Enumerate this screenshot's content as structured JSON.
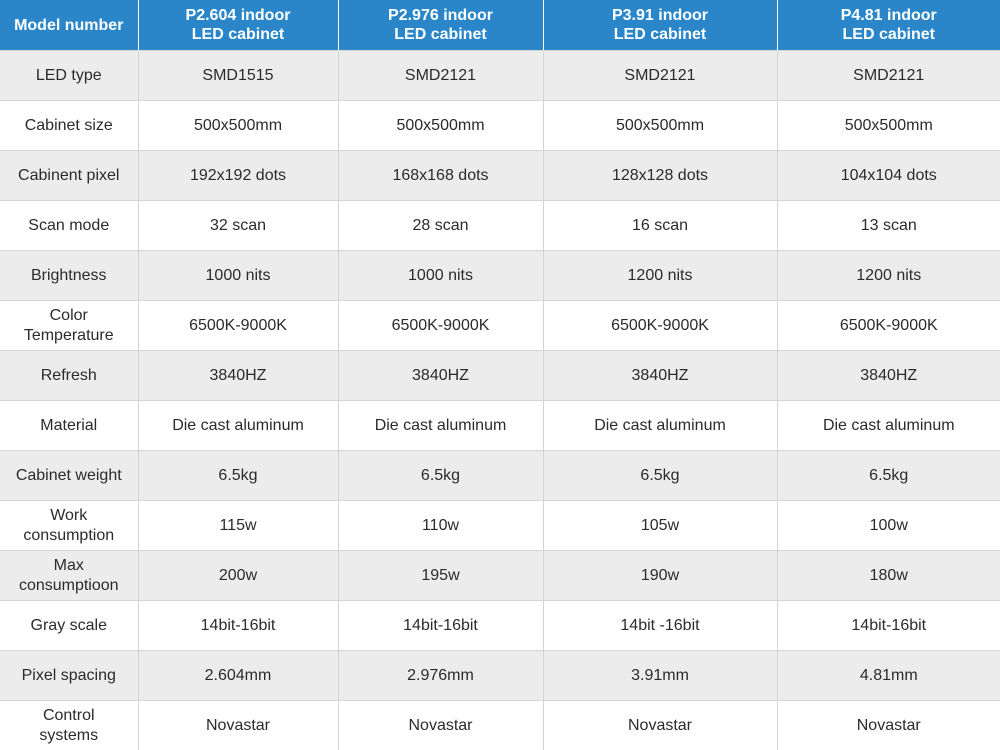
{
  "table": {
    "headers": [
      "Model number",
      "P2.604 indoor\nLED cabinet",
      "P2.976 indoor\nLED cabinet",
      "P3.91 indoor\nLED cabinet",
      "P4.81 indoor\nLED cabinet"
    ],
    "rows": [
      {
        "label": "LED type",
        "values": [
          "SMD1515",
          "SMD2121",
          "SMD2121",
          "SMD2121"
        ]
      },
      {
        "label": "Cabinet size",
        "values": [
          "500x500mm",
          "500x500mm",
          "500x500mm",
          "500x500mm"
        ]
      },
      {
        "label": "Cabinent pixel",
        "values": [
          "192x192 dots",
          "168x168 dots",
          "128x128 dots",
          "104x104 dots"
        ]
      },
      {
        "label": "Scan mode",
        "values": [
          "32 scan",
          "28 scan",
          "16 scan",
          "13 scan"
        ]
      },
      {
        "label": "Brightness",
        "values": [
          "1000 nits",
          "1000 nits",
          "1200 nits",
          "1200 nits"
        ]
      },
      {
        "label": "Color\nTemperature",
        "values": [
          "6500K-9000K",
          "6500K-9000K",
          "6500K-9000K",
          "6500K-9000K"
        ]
      },
      {
        "label": "Refresh",
        "values": [
          "3840HZ",
          "3840HZ",
          "3840HZ",
          "3840HZ"
        ]
      },
      {
        "label": "Material",
        "values": [
          "Die cast aluminum",
          "Die cast aluminum",
          "Die cast aluminum",
          "Die cast aluminum"
        ]
      },
      {
        "label": "Cabinet weight",
        "values": [
          "6.5kg",
          "6.5kg",
          "6.5kg",
          "6.5kg"
        ]
      },
      {
        "label": "Work\nconsumption",
        "values": [
          "115w",
          "110w",
          "105w",
          "100w"
        ]
      },
      {
        "label": "Max\nconsumptioon",
        "values": [
          "200w",
          "195w",
          "190w",
          "180w"
        ]
      },
      {
        "label": "Gray scale",
        "values": [
          "14bit-16bit",
          "14bit-16bit",
          "14bit -16bit",
          "14bit-16bit"
        ]
      },
      {
        "label": "Pixel spacing",
        "values": [
          "2.604mm",
          "2.976mm",
          "3.91mm",
          "4.81mm"
        ]
      },
      {
        "label": "Control\nsystems",
        "values": [
          "Novastar",
          "Novastar",
          "Novastar",
          "Novastar"
        ]
      }
    ]
  },
  "colors": {
    "header_bg": "#2a86c9",
    "header_text": "#ffffff",
    "row_alt_bg": "#ececec",
    "row_bg": "#ffffff",
    "grid": "#d4d4d4"
  }
}
